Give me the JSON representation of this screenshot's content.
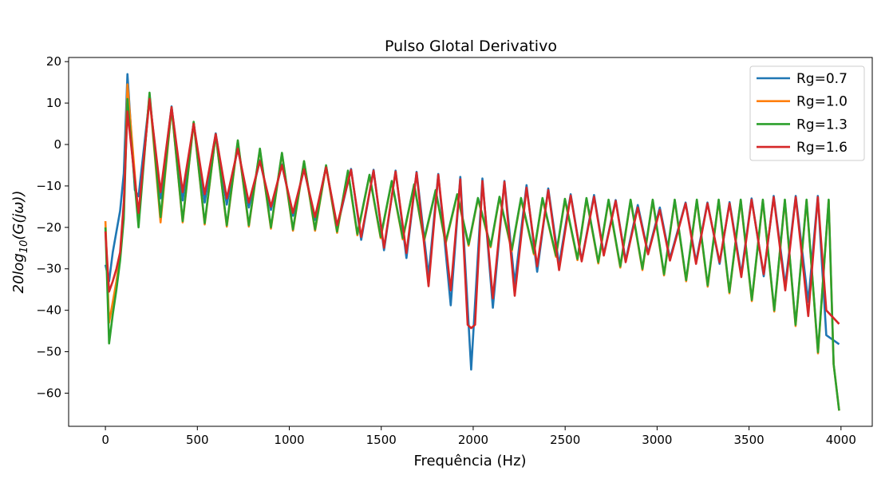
{
  "chart_data": {
    "type": "line",
    "title": "Pulso Glotal Derivativo",
    "xlabel": "Frequência (Hz)",
    "ylabel": {
      "base": "20log",
      "sub": "10",
      "rest": "(G(jω))"
    },
    "xlim": [
      -200,
      4170
    ],
    "ylim": [
      -68,
      21
    ],
    "xticks": [
      0,
      500,
      1000,
      1500,
      2000,
      2500,
      3000,
      3500,
      4000
    ],
    "xtick_labels": [
      "0",
      "500",
      "1000",
      "1500",
      "2000",
      "2500",
      "3000",
      "3500",
      "4000"
    ],
    "yticks": [
      -60,
      -50,
      -40,
      -30,
      -20,
      -10,
      0,
      10,
      20
    ],
    "ytick_labels": [
      "−60",
      "−50",
      "−40",
      "−30",
      "−20",
      "−10",
      "0",
      "10",
      "20"
    ],
    "grid": false,
    "legend_placement": "top-right",
    "series": [
      {
        "name": "Rg=0.7",
        "color": "#1f77b4",
        "points": [
          [
            0,
            -29
          ],
          [
            20,
            -33
          ],
          [
            40,
            -26
          ],
          [
            60,
            -21
          ],
          [
            80,
            -16
          ],
          [
            100,
            -7
          ],
          [
            120,
            17
          ],
          [
            160,
            -11
          ],
          [
            180,
            -12.5
          ],
          [
            240,
            11.3
          ],
          [
            300,
            -13
          ],
          [
            360,
            9.2
          ],
          [
            420,
            -13.5
          ],
          [
            480,
            5.2
          ],
          [
            540,
            -14
          ],
          [
            600,
            2.7
          ],
          [
            660,
            -14.5
          ],
          [
            720,
            -0.8
          ],
          [
            780,
            -15.2
          ],
          [
            840,
            -3.8
          ],
          [
            900,
            -15.8
          ],
          [
            960,
            -4.8
          ],
          [
            1020,
            -17.2
          ],
          [
            1080,
            -5.8
          ],
          [
            1140,
            -18.2
          ],
          [
            1200,
            -5.3
          ],
          [
            1260,
            -20.2
          ],
          [
            1336,
            -5.9
          ],
          [
            1391,
            -23
          ],
          [
            1458,
            -6.1
          ],
          [
            1515,
            -25.5
          ],
          [
            1578,
            -6.3
          ],
          [
            1637,
            -27.4
          ],
          [
            1692,
            -6.6
          ],
          [
            1757,
            -31.7
          ],
          [
            1810,
            -7.1
          ],
          [
            1878,
            -38.8
          ],
          [
            1930,
            -7.8
          ],
          [
            1989,
            -54.3
          ],
          [
            2050,
            -8.2
          ],
          [
            2107,
            -39.4
          ],
          [
            2170,
            -8.8
          ],
          [
            2226,
            -33.6
          ],
          [
            2290,
            -9.8
          ],
          [
            2348,
            -30.7
          ],
          [
            2408,
            -10.6
          ],
          [
            2467,
            -29
          ],
          [
            2530,
            -12
          ],
          [
            2590,
            -28
          ],
          [
            2657,
            -12.2
          ],
          [
            2710,
            -26.5
          ],
          [
            2775,
            -13.4
          ],
          [
            2829,
            -28
          ],
          [
            2895,
            -14.6
          ],
          [
            2951,
            -26.2
          ],
          [
            3015,
            -15.2
          ],
          [
            3070,
            -27.5
          ],
          [
            3155,
            -14
          ],
          [
            3212,
            -28.3
          ],
          [
            3274,
            -14
          ],
          [
            3340,
            -28.8
          ],
          [
            3394,
            -13.9
          ],
          [
            3458,
            -31.3
          ],
          [
            3514,
            -13
          ],
          [
            3580,
            -31.8
          ],
          [
            3634,
            -12.4
          ],
          [
            3697,
            -34
          ],
          [
            3754,
            -12.4
          ],
          [
            3822,
            -38
          ],
          [
            3874,
            -12.4
          ],
          [
            3920,
            -46
          ],
          [
            3990,
            -48.2
          ]
        ]
      },
      {
        "name": "Rg=1.0",
        "color": "#ff7f0e",
        "points": [
          [
            0,
            -18.5
          ],
          [
            20,
            -43
          ],
          [
            40,
            -38
          ],
          [
            60,
            -33
          ],
          [
            80,
            -27
          ],
          [
            100,
            -17
          ],
          [
            120,
            14.5
          ],
          [
            180,
            -18.3
          ],
          [
            240,
            12
          ],
          [
            300,
            -18.8
          ],
          [
            360,
            8.8
          ],
          [
            420,
            -18.8
          ],
          [
            480,
            5.3
          ],
          [
            540,
            -19.3
          ],
          [
            600,
            2.4
          ],
          [
            660,
            -19.8
          ],
          [
            720,
            0.8
          ],
          [
            780,
            -19.8
          ],
          [
            840,
            -1.2
          ],
          [
            900,
            -20.3
          ],
          [
            960,
            -2.2
          ],
          [
            1020,
            -20.8
          ],
          [
            1080,
            -4.2
          ],
          [
            1140,
            -20.8
          ],
          [
            1200,
            -5.2
          ],
          [
            1260,
            -21.3
          ],
          [
            1319,
            -6.5
          ],
          [
            1370,
            -21.9
          ],
          [
            1436,
            -7.5
          ],
          [
            1497,
            -22.6
          ],
          [
            1557,
            -9
          ],
          [
            1617,
            -22.9
          ],
          [
            1679,
            -9.8
          ],
          [
            1733,
            -23.3
          ],
          [
            1796,
            -11.2
          ],
          [
            1850,
            -23.9
          ],
          [
            1913,
            -12.2
          ],
          [
            1975,
            -24.4
          ],
          [
            2026,
            -13.1
          ],
          [
            2095,
            -24.8
          ],
          [
            2143,
            -12.8
          ],
          [
            2210,
            -25.7
          ],
          [
            2260,
            -13.1
          ],
          [
            2330,
            -26.5
          ],
          [
            2377,
            -13.1
          ],
          [
            2450,
            -27.1
          ],
          [
            2499,
            -13.3
          ],
          [
            2567,
            -27.9
          ],
          [
            2616,
            -13.1
          ],
          [
            2680,
            -28.7
          ],
          [
            2736,
            -13.5
          ],
          [
            2800,
            -29.7
          ],
          [
            2856,
            -13.5
          ],
          [
            2920,
            -30.3
          ],
          [
            2976,
            -13.5
          ],
          [
            3038,
            -31.6
          ],
          [
            3096,
            -13.5
          ],
          [
            3158,
            -33
          ],
          [
            3216,
            -13.5
          ],
          [
            3275,
            -34.3
          ],
          [
            3335,
            -13.5
          ],
          [
            3393,
            -35.9
          ],
          [
            3455,
            -13.5
          ],
          [
            3515,
            -37.8
          ],
          [
            3575,
            -13.5
          ],
          [
            3637,
            -40.3
          ],
          [
            3695,
            -13.5
          ],
          [
            3753,
            -43.8
          ],
          [
            3813,
            -13.5
          ],
          [
            3875,
            -50.4
          ],
          [
            3933,
            -13.5
          ],
          [
            3960,
            -53
          ],
          [
            3990,
            -64.2
          ]
        ]
      },
      {
        "name": "Rg=1.3",
        "color": "#2ca02c",
        "points": [
          [
            0,
            -20
          ],
          [
            20,
            -48
          ],
          [
            40,
            -41
          ],
          [
            60,
            -35
          ],
          [
            80,
            -28
          ],
          [
            100,
            -18
          ],
          [
            120,
            11
          ],
          [
            180,
            -20
          ],
          [
            240,
            12.5
          ],
          [
            300,
            -17.5
          ],
          [
            360,
            9
          ],
          [
            420,
            -18.5
          ],
          [
            480,
            5.5
          ],
          [
            540,
            -19
          ],
          [
            600,
            2.5
          ],
          [
            660,
            -19.5
          ],
          [
            720,
            1
          ],
          [
            780,
            -19.5
          ],
          [
            840,
            -1
          ],
          [
            900,
            -20
          ],
          [
            960,
            -2
          ],
          [
            1020,
            -20.5
          ],
          [
            1080,
            -4
          ],
          [
            1140,
            -20.5
          ],
          [
            1200,
            -5
          ],
          [
            1260,
            -21
          ],
          [
            1319,
            -6.3
          ],
          [
            1370,
            -21.6
          ],
          [
            1436,
            -7.3
          ],
          [
            1497,
            -22.3
          ],
          [
            1557,
            -8.8
          ],
          [
            1617,
            -22.6
          ],
          [
            1679,
            -9.6
          ],
          [
            1733,
            -23
          ],
          [
            1796,
            -11
          ],
          [
            1850,
            -23.6
          ],
          [
            1913,
            -12
          ],
          [
            1975,
            -24.1
          ],
          [
            2026,
            -12.9
          ],
          [
            2095,
            -24.5
          ],
          [
            2143,
            -12.6
          ],
          [
            2210,
            -25.4
          ],
          [
            2260,
            -12.9
          ],
          [
            2330,
            -26.2
          ],
          [
            2377,
            -12.9
          ],
          [
            2450,
            -26.8
          ],
          [
            2499,
            -13.1
          ],
          [
            2567,
            -27.6
          ],
          [
            2616,
            -12.9
          ],
          [
            2680,
            -28.4
          ],
          [
            2736,
            -13.3
          ],
          [
            2800,
            -29.4
          ],
          [
            2856,
            -13.3
          ],
          [
            2920,
            -30
          ],
          [
            2976,
            -13.3
          ],
          [
            3038,
            -31.3
          ],
          [
            3096,
            -13.3
          ],
          [
            3158,
            -32.7
          ],
          [
            3216,
            -13.3
          ],
          [
            3275,
            -34
          ],
          [
            3335,
            -13.3
          ],
          [
            3393,
            -35.6
          ],
          [
            3455,
            -13.3
          ],
          [
            3515,
            -37.5
          ],
          [
            3575,
            -13.3
          ],
          [
            3637,
            -40
          ],
          [
            3695,
            -13.3
          ],
          [
            3753,
            -43.5
          ],
          [
            3813,
            -13.3
          ],
          [
            3875,
            -50.1
          ],
          [
            3933,
            -13.3
          ],
          [
            3960,
            -53
          ],
          [
            3990,
            -64.2
          ]
        ]
      },
      {
        "name": "Rg=1.6",
        "color": "#d62728",
        "points": [
          [
            0,
            -21
          ],
          [
            20,
            -35.5
          ],
          [
            40,
            -33
          ],
          [
            60,
            -30
          ],
          [
            80,
            -26
          ],
          [
            100,
            -14
          ],
          [
            120,
            8
          ],
          [
            180,
            -16.5
          ],
          [
            240,
            11
          ],
          [
            300,
            -11.5
          ],
          [
            360,
            9
          ],
          [
            420,
            -11.5
          ],
          [
            480,
            5
          ],
          [
            540,
            -12
          ],
          [
            600,
            2.5
          ],
          [
            660,
            -13
          ],
          [
            720,
            -1
          ],
          [
            780,
            -14
          ],
          [
            840,
            -4
          ],
          [
            900,
            -15
          ],
          [
            960,
            -5
          ],
          [
            1020,
            -16.5
          ],
          [
            1080,
            -6
          ],
          [
            1140,
            -17.5
          ],
          [
            1200,
            -5.5
          ],
          [
            1260,
            -19.5
          ],
          [
            1336,
            -6.1
          ],
          [
            1391,
            -22.3
          ],
          [
            1458,
            -6.3
          ],
          [
            1515,
            -24.9
          ],
          [
            1578,
            -6.5
          ],
          [
            1637,
            -26.2
          ],
          [
            1692,
            -6.8
          ],
          [
            1757,
            -34.2
          ],
          [
            1810,
            -7.3
          ],
          [
            1878,
            -35.2
          ],
          [
            1930,
            -8.4
          ],
          [
            1970,
            -43.5
          ],
          [
            1989,
            -44.3
          ],
          [
            2010,
            -43.5
          ],
          [
            2050,
            -8.8
          ],
          [
            2107,
            -37.1
          ],
          [
            2170,
            -9
          ],
          [
            2226,
            -36.5
          ],
          [
            2290,
            -10.4
          ],
          [
            2348,
            -29.4
          ],
          [
            2408,
            -11
          ],
          [
            2467,
            -30.3
          ],
          [
            2530,
            -12.3
          ],
          [
            2590,
            -28.2
          ],
          [
            2657,
            -12.6
          ],
          [
            2710,
            -26.8
          ],
          [
            2775,
            -13.6
          ],
          [
            2829,
            -28.4
          ],
          [
            2895,
            -15.2
          ],
          [
            2951,
            -26.5
          ],
          [
            3015,
            -15.8
          ],
          [
            3070,
            -28
          ],
          [
            3155,
            -14.2
          ],
          [
            3212,
            -28.8
          ],
          [
            3274,
            -14.2
          ],
          [
            3340,
            -28.4
          ],
          [
            3394,
            -14.2
          ],
          [
            3458,
            -32
          ],
          [
            3514,
            -13.3
          ],
          [
            3580,
            -31.3
          ],
          [
            3634,
            -12.7
          ],
          [
            3697,
            -35.2
          ],
          [
            3754,
            -12.7
          ],
          [
            3822,
            -41.4
          ],
          [
            3874,
            -12.7
          ],
          [
            3920,
            -40
          ],
          [
            3990,
            -43.3
          ]
        ]
      }
    ]
  }
}
